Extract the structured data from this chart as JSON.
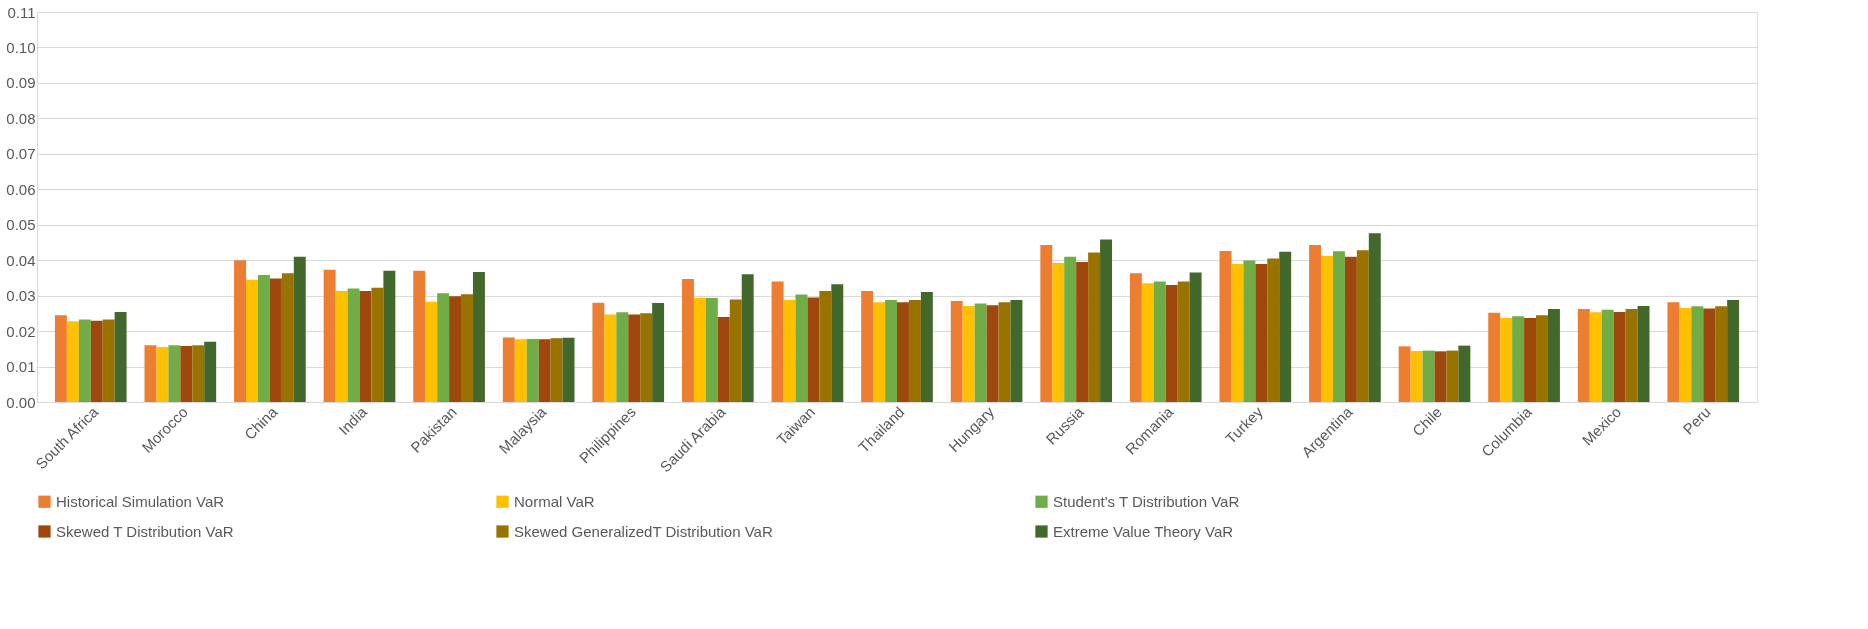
{
  "chart_data": {
    "type": "bar",
    "categories": [
      "South Africa",
      "Morocco",
      "China",
      "India",
      "Pakistan",
      "Malaysia",
      "Philippines",
      "Saudi Arabia",
      "Taiwan",
      "Thailand",
      "Hungary",
      "Russia",
      "Romania",
      "Turkey",
      "Argentina",
      "Chile",
      "Columbia",
      "Mexico",
      "Peru"
    ],
    "series": [
      {
        "name": "Historical Simulation  VaR",
        "color": "#ed7d31",
        "values": [
          0.0245,
          0.016,
          0.04,
          0.0373,
          0.037,
          0.0182,
          0.028,
          0.0347,
          0.034,
          0.0313,
          0.0285,
          0.0443,
          0.0363,
          0.0426,
          0.0443,
          0.0157,
          0.0252,
          0.0262,
          0.0281
        ]
      },
      {
        "name": "Normal VaR",
        "color": "#ffc000",
        "values": [
          0.0228,
          0.0155,
          0.0345,
          0.0313,
          0.0283,
          0.0177,
          0.0247,
          0.0294,
          0.0288,
          0.0281,
          0.0271,
          0.0392,
          0.0335,
          0.0389,
          0.0412,
          0.0144,
          0.0237,
          0.0253,
          0.0265
        ]
      },
      {
        "name": "Student's T Distribution VaR",
        "color": "#70ad47",
        "values": [
          0.0233,
          0.016,
          0.0358,
          0.032,
          0.0307,
          0.0178,
          0.0253,
          0.0293,
          0.0303,
          0.0288,
          0.0278,
          0.041,
          0.034,
          0.0399,
          0.0425,
          0.0145,
          0.0242,
          0.026,
          0.027
        ]
      },
      {
        "name": "Skewed T Distribution VaR",
        "color": "#9e480e",
        "values": [
          0.0229,
          0.0158,
          0.0348,
          0.0313,
          0.0298,
          0.0177,
          0.0247,
          0.024,
          0.0295,
          0.0281,
          0.0273,
          0.0395,
          0.033,
          0.0389,
          0.041,
          0.0143,
          0.0237,
          0.0254,
          0.0264
        ]
      },
      {
        "name": " Skewed GeneralizedT Distribution VaR",
        "color": "#997300",
        "values": [
          0.0233,
          0.016,
          0.0363,
          0.0322,
          0.0304,
          0.018,
          0.025,
          0.0289,
          0.0313,
          0.0288,
          0.0281,
          0.0422,
          0.034,
          0.0405,
          0.0428,
          0.0145,
          0.0245,
          0.0262,
          0.027
        ]
      },
      {
        "name": "Extreme Value Theory  VaR",
        "color": "#43682b",
        "values": [
          0.0254,
          0.017,
          0.041,
          0.037,
          0.0367,
          0.0181,
          0.0279,
          0.036,
          0.0332,
          0.031,
          0.0288,
          0.0458,
          0.0365,
          0.0424,
          0.0476,
          0.0159,
          0.0262,
          0.0271,
          0.0288
        ]
      }
    ],
    "ylim": [
      0,
      0.11
    ],
    "yticks": [
      {
        "value": 0,
        "label": "0.00"
      },
      0.01,
      0.02,
      0.03,
      0.04,
      0.05,
      0.06,
      0.07,
      0.08,
      0.09,
      {
        "value": 0.1,
        "label": "0.10"
      },
      0.11
    ],
    "grid": "y",
    "legend": "bottom"
  }
}
